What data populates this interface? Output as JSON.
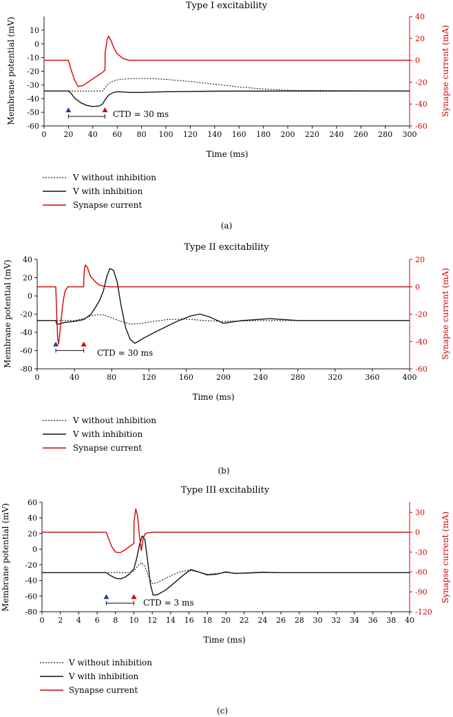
{
  "figure": {
    "colors": {
      "voltage": "#111111",
      "current": "#d00000",
      "marker_start": "#1f3f8f",
      "marker_end": "#d00000"
    }
  },
  "chart_data": [
    {
      "type": "line",
      "panel": "a",
      "caption": "(a)",
      "title": "Type I excitability",
      "xlabel": "Time (ms)",
      "ylabel": "Membrane potential (mV)",
      "y2label": "Synapse current (mA)",
      "xlim": [
        0,
        300
      ],
      "ylim": [
        -60,
        20
      ],
      "y2lim": [
        -60,
        40
      ],
      "xticks": [
        0,
        20,
        40,
        60,
        80,
        100,
        120,
        140,
        160,
        180,
        200,
        220,
        240,
        260,
        280,
        300
      ],
      "yticks": [
        -60,
        -50,
        -40,
        -30,
        -20,
        -10,
        0,
        10
      ],
      "y2ticks": [
        -60,
        -40,
        -20,
        0,
        20,
        40
      ],
      "ctd_label": "CTD = 30 ms",
      "markers": {
        "start": 20,
        "end": 50,
        "y": -53
      },
      "legend": [
        "V without inhibition",
        "V with inhibition",
        "Synapse current"
      ],
      "series": [
        {
          "name": "V without inhibition",
          "axis": "left",
          "style": "dotted",
          "x": [
            0,
            48,
            50,
            53,
            57,
            62,
            70,
            80,
            90,
            100,
            120,
            140,
            160,
            180,
            200,
            300
          ],
          "y": [
            -34.5,
            -34.5,
            -32,
            -29,
            -27,
            -26,
            -25.5,
            -25.3,
            -25.5,
            -26,
            -27.5,
            -29.5,
            -31.5,
            -33,
            -34,
            -34.5
          ]
        },
        {
          "name": "V with inhibition",
          "axis": "left",
          "style": "solid",
          "x": [
            0,
            20,
            22,
            25,
            30,
            35,
            40,
            45,
            48,
            50,
            53,
            57,
            60,
            65,
            70,
            80,
            100,
            140,
            200,
            300
          ],
          "y": [
            -34.5,
            -34.5,
            -36,
            -39.5,
            -43,
            -45,
            -45.8,
            -45.5,
            -44,
            -41,
            -37.5,
            -35.5,
            -35,
            -35.2,
            -35.5,
            -35.5,
            -35,
            -34.6,
            -34.5,
            -34.5
          ]
        },
        {
          "name": "Synapse current",
          "axis": "right",
          "style": "solid",
          "x": [
            0,
            20,
            22,
            25,
            28,
            32,
            36,
            40,
            44,
            48,
            50,
            50.1,
            52,
            53,
            55,
            57,
            60,
            65,
            70,
            80,
            100,
            300
          ],
          "y": [
            0,
            0,
            -8,
            -18,
            -24,
            -23,
            -20,
            -17,
            -14,
            -11,
            -9,
            7,
            20,
            22,
            18,
            12,
            6,
            1.5,
            0,
            0,
            0,
            0
          ]
        }
      ]
    },
    {
      "type": "line",
      "panel": "b",
      "caption": "(b)",
      "title": "Type II excitability",
      "xlabel": "Time (ms)",
      "ylabel": "Membrane potential (mV)",
      "y2label": "Synapse current (mA)",
      "xlim": [
        0,
        400
      ],
      "ylim": [
        -80,
        40
      ],
      "y2lim": [
        -60,
        20
      ],
      "xticks": [
        0,
        40,
        80,
        120,
        160,
        200,
        240,
        280,
        320,
        360,
        400
      ],
      "yticks": [
        -80,
        -60,
        -40,
        -20,
        0,
        20,
        40
      ],
      "y2ticks": [
        -60,
        -40,
        -20,
        0,
        20
      ],
      "ctd_label": "CTD = 30 ms",
      "markers": {
        "start": 20,
        "end": 50,
        "y": -60
      },
      "legend": [
        "V without inhibition",
        "V with inhibition",
        "Synapse current"
      ],
      "series": [
        {
          "name": "V without inhibition",
          "axis": "left",
          "style": "dotted",
          "x": [
            0,
            40,
            50,
            58,
            65,
            72,
            80,
            90,
            100,
            110,
            125,
            140,
            160,
            180,
            200,
            240,
            300,
            400
          ],
          "y": [
            -27,
            -27,
            -25,
            -22,
            -20.5,
            -21,
            -24,
            -28,
            -31,
            -30.5,
            -28,
            -26,
            -25.5,
            -27,
            -28,
            -27,
            -27,
            -27
          ]
        },
        {
          "name": "V with inhibition",
          "axis": "left",
          "style": "solid",
          "x": [
            0,
            20,
            21,
            23,
            26,
            30,
            40,
            50,
            58,
            63,
            67,
            71,
            75,
            78,
            82,
            86,
            90,
            95,
            100,
            105,
            115,
            130,
            150,
            165,
            175,
            185,
            200,
            220,
            250,
            280,
            320,
            400
          ],
          "y": [
            -27,
            -27,
            -31,
            -31,
            -30,
            -29,
            -28,
            -26,
            -20,
            -12,
            -5,
            5,
            22,
            30,
            28,
            15,
            -10,
            -35,
            -48,
            -52,
            -46,
            -38,
            -28,
            -22,
            -20,
            -23,
            -30,
            -27,
            -25,
            -27,
            -27,
            -27
          ]
        },
        {
          "name": "Synapse current",
          "axis": "right",
          "style": "solid",
          "x": [
            0,
            20,
            21,
            22,
            23,
            24,
            26,
            28,
            30,
            33,
            36,
            40,
            50,
            50.2,
            51,
            52,
            54,
            56,
            58,
            62,
            66,
            72,
            80,
            400
          ],
          "y": [
            0,
            0,
            -20,
            -38,
            -42,
            -36,
            -22,
            -10,
            -3,
            0,
            0,
            0,
            0,
            8,
            14,
            16,
            14,
            10,
            7,
            4,
            1.5,
            0.3,
            0,
            0
          ]
        }
      ]
    },
    {
      "type": "line",
      "panel": "c",
      "caption": "(c)",
      "title": "Type III excitability",
      "xlabel": "Time (ms)",
      "ylabel": "Membrane potential (mV)",
      "y2label": "Synapse current (mA)",
      "xlim": [
        0,
        40
      ],
      "ylim": [
        -80,
        60
      ],
      "y2lim": [
        -120,
        45
      ],
      "xticks": [
        0,
        2,
        4,
        6,
        8,
        10,
        12,
        14,
        16,
        18,
        20,
        22,
        24,
        26,
        28,
        30,
        32,
        34,
        36,
        38,
        40
      ],
      "yticks": [
        -80,
        -60,
        -40,
        -20,
        0,
        20,
        40,
        60
      ],
      "y2ticks": [
        -120,
        -90,
        -60,
        -30,
        0,
        30
      ],
      "ctd_label": "CTD = 3 ms",
      "markers": {
        "start": 7,
        "end": 10,
        "y": -69
      },
      "legend": [
        "V without inhibition",
        "V with inhibition",
        "Synapse current"
      ],
      "series": [
        {
          "name": "V without inhibition",
          "axis": "left",
          "style": "dotted",
          "x": [
            0,
            9.5,
            10,
            10.4,
            10.8,
            11.2,
            11.6,
            12,
            12.5,
            13,
            14,
            15,
            16,
            17,
            18,
            19,
            20,
            22,
            24,
            40
          ],
          "y": [
            -30,
            -30,
            -28,
            -22,
            -17,
            -22,
            -35,
            -44,
            -43,
            -40,
            -34,
            -29,
            -27,
            -29,
            -32,
            -31,
            -30,
            -31,
            -30,
            -30
          ]
        },
        {
          "name": "V with inhibition",
          "axis": "left",
          "style": "solid",
          "x": [
            0,
            7,
            7.5,
            8,
            8.5,
            9,
            9.5,
            10,
            10.3,
            10.6,
            10.9,
            11.2,
            11.5,
            11.8,
            12.1,
            12.6,
            13.5,
            14.5,
            15.5,
            16.2,
            17,
            18,
            19,
            20,
            21,
            22,
            24,
            26,
            40
          ],
          "y": [
            -30,
            -30,
            -34,
            -37,
            -38,
            -36,
            -32,
            -25,
            -12,
            5,
            17,
            12,
            -15,
            -45,
            -59,
            -58,
            -52,
            -42,
            -32,
            -26,
            -29,
            -33,
            -32,
            -29,
            -31,
            -30.5,
            -29.5,
            -30,
            -30
          ]
        },
        {
          "name": "Synapse current",
          "axis": "right",
          "style": "solid",
          "x": [
            0,
            7,
            7.3,
            7.6,
            8,
            8.5,
            9,
            9.5,
            10,
            10.01,
            10.2,
            10.4,
            10.6,
            10.8,
            11,
            11.2,
            11.5,
            12,
            13,
            40
          ],
          "y": [
            0,
            0,
            -12,
            -22,
            -30,
            -31,
            -27,
            -22,
            -17,
            15,
            35,
            25,
            -5,
            -28,
            -10,
            -3,
            -1,
            0,
            0,
            0
          ]
        }
      ]
    }
  ]
}
